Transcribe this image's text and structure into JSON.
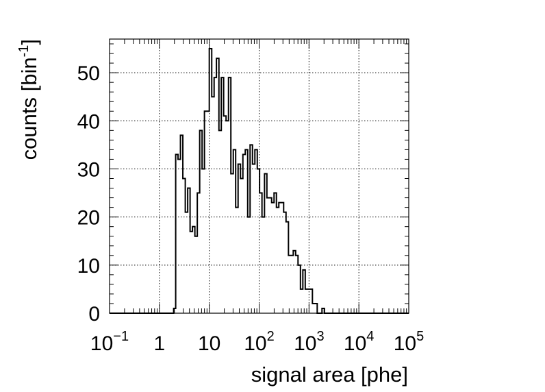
{
  "chart_data": {
    "type": "histogram",
    "xlabel": "signal area [phe]",
    "ylabel": {
      "text": "counts [bin",
      "sup": "-1",
      "close": "]"
    },
    "x_scale": "log",
    "xlim": [
      0.1,
      100000
    ],
    "ylim": [
      0,
      57
    ],
    "grid": true,
    "x_ticks": [
      {
        "value": 0.1,
        "base": "10",
        "exp": "−1"
      },
      {
        "value": 1,
        "base": "1",
        "exp": ""
      },
      {
        "value": 10,
        "base": "10",
        "exp": ""
      },
      {
        "value": 100,
        "base": "10",
        "exp": "2"
      },
      {
        "value": 1000,
        "base": "10",
        "exp": "3"
      },
      {
        "value": 10000,
        "base": "10",
        "exp": "4"
      },
      {
        "value": 100000,
        "base": "10",
        "exp": "5"
      }
    ],
    "y_ticks": [
      {
        "value": 0,
        "label": "0"
      },
      {
        "value": 10,
        "label": "10"
      },
      {
        "value": 20,
        "label": "20"
      },
      {
        "value": 30,
        "label": "30"
      },
      {
        "value": 40,
        "label": "40"
      },
      {
        "value": 50,
        "label": "50"
      }
    ],
    "bins": {
      "edges": [
        0.1,
        1.93,
        2.12,
        2.36,
        2.64,
        2.95,
        3.3,
        3.69,
        4.12,
        4.6,
        5.14,
        5.75,
        6.42,
        7.17,
        8.0,
        8.96,
        10.0,
        11.2,
        12.5,
        13.9,
        15.6,
        17.4,
        19.4,
        21.7,
        24.3,
        27.1,
        30.3,
        33.8,
        37.8,
        42.2,
        47.2,
        52.7,
        58.9,
        65.8,
        73.5,
        82.1,
        91.7,
        102.0,
        114.0,
        128.0,
        143.0,
        159.0,
        178.0,
        199.0,
        222.0,
        248.0,
        277.0,
        310.0,
        346.0,
        387.0,
        432.0,
        483.0,
        539.0,
        602.0,
        673.0,
        752.0,
        840.0,
        938.0,
        1050.0,
        1170.0,
        1310.0,
        1460.0,
        1630.0,
        1820.0,
        2040.0,
        2280.0,
        2540.0,
        2840.0,
        3170.0,
        3540.0,
        3960.0,
        4430.0,
        100000
      ],
      "counts": [
        0,
        1,
        33,
        32,
        37,
        28,
        21,
        26,
        17,
        18,
        16,
        25,
        38,
        30,
        42,
        42,
        55,
        45,
        49,
        53,
        38,
        49,
        41,
        40,
        49,
        29,
        34,
        22,
        31,
        28,
        33,
        34,
        20,
        35,
        31,
        34,
        30,
        25,
        20,
        29,
        24,
        24,
        23,
        25,
        22,
        23,
        23,
        21,
        19,
        12,
        12,
        13,
        12,
        10,
        5,
        9,
        5,
        5,
        5,
        2,
        2,
        0,
        0,
        1,
        0,
        0,
        0,
        0,
        0,
        0,
        0,
        0
      ]
    }
  }
}
